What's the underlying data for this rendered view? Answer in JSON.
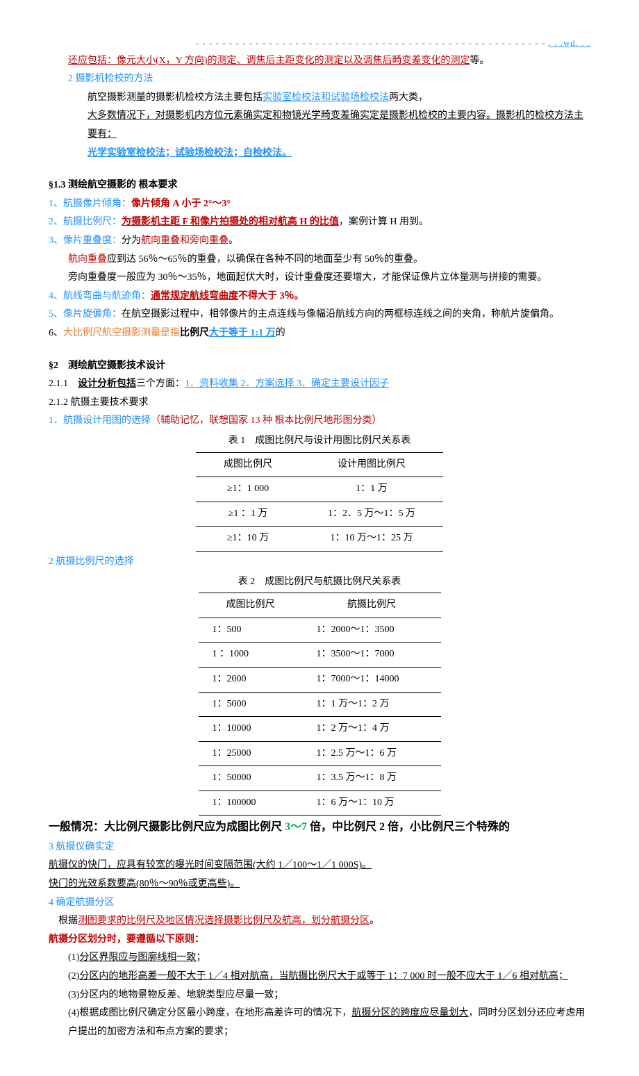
{
  "header": {
    "dashes": "- - - - - - - - - - - - - - - - - - - - - - - - - - - - - - - - - - - - - - - - - - - - - - - - - - - - - ",
    "wd": ". . .wd. . ."
  },
  "p1": {
    "prefix": "还应包括：",
    "rest": "像元大小(X，Y 方向)的测定、调焦后主距变化的测定以及调焦后畸变差变化的测定"
  },
  "p1_suffix": "等。",
  "p2": "2 摄影机检校的方法",
  "p3_a": "航空摄影测量的摄影机检校方法主要包括",
  "p3_b": "实验室检校法和试验场检校法",
  "p3_c": "两大类，",
  "p4_a": "大多数情况下，对摄影机内方位元素确实定和物镜光学畸变差确实定是摄影机检校的主要内容。摄影机的检校方法主要有：",
  "p4_b": "光学实验室检校法；试验场检校法；自检校法。",
  "s13": "§1.3 测绘航空摄影的 根本要求",
  "i1_a": "1、",
  "i1_b": "航摄像片倾角：",
  "i1_c": "像片倾角 A 小于 2°～3°",
  "i2_a": "2、",
  "i2_b": "航摄比例尺：",
  "i2_c": "为摄影机",
  "i2_d": "主距 F 和像片拍摄处的相对航高 H 的比值",
  "i2_e": "，案例计算 H 用到。",
  "i3_a": "3、",
  "i3_b": "像片重叠度：",
  "i3_c": "分为",
  "i3_d": "航向重叠和旁向重叠",
  "i3_e": "。",
  "i3_line2_a": "航向重叠",
  "i3_line2_b": "应到达 56％～65％的重叠，以确保在各种不同的地面至少有 50％的重叠。",
  "i3_line3": "旁向重叠度一般应为 30％～35％，地面起伏大时，设计重叠度还要增大，才能保证像片立体量测与拼接的需要。",
  "i4_a": "4、",
  "i4_b": "航线弯曲与航迹角：",
  "i4_c": "通常规定航线弯曲度",
  "i4_d": "不得大于 3％。",
  "i5_a": "5、",
  "i5_b": "像片旋偏角：",
  "i5_c": "在航空摄影过程中，相邻像片的主点连线与像幅沿航线方向的两框标连线之间的夹角，称航片旋偏角。",
  "i6_a": "6、",
  "i6_b": "大比例尺航空摄影测量是指",
  "i6_c": "比例尺",
  "i6_d": "大于等于 1:1 万",
  "i6_e": "的",
  "s2": "§2　测绘航空摄影技术设计",
  "s211_a": "2.1.1　",
  "s211_b": "设计分析包括",
  "s211_c": "三个方面：",
  "s211_d": "1．资料收集 2．方案选择 3．确定主要设计因子",
  "s212": "2.1.2 航摄主要技术要求",
  "s1_a": "1．航摄设计用图的选择",
  "s1_b": "（辅助记忆，联想国家 13 种 根本比例尺地形图分类）",
  "table1": {
    "caption": "表 1　成图比例尺与设计用图比例尺关系表",
    "headers": [
      "成图比例尺",
      "设计用图比例尺"
    ],
    "rows": [
      [
        "≥1：1  000",
        "1：1 万"
      ],
      [
        "≥1 ：1 万",
        "1：2．5 万～1：5 万"
      ],
      [
        "≥1：10 万",
        "1：10 万～1：25 万"
      ]
    ]
  },
  "p5": "2 航摄比例尺的选择",
  "table2": {
    "caption": "表 2　成图比例尺与航摄比例尺关系表",
    "headers": [
      "成图比例尺",
      "航摄比例尺"
    ],
    "rows": [
      [
        "1：500",
        "1：2000～1：3500"
      ],
      [
        "1 ：1000",
        "1：3500～1：7000"
      ],
      [
        "1：2000",
        "1：7000～1：14000"
      ],
      [
        "1：5000",
        "1：1 万～1：2 万"
      ],
      [
        "1：10000",
        "1：2 万～1：4 万"
      ],
      [
        "1：25000",
        "1：2.5 万～1：6 万"
      ],
      [
        "1：50000",
        "1：3.5 万～1：8 万"
      ],
      [
        "1：100000",
        "1：6 万～1：10 万"
      ]
    ]
  },
  "summary_a": "一般情况：大比例尺摄影比例尺应为成图比例尺 ",
  "summary_b": "3～7",
  "summary_c": " 倍，中比例尺 2 倍，小比例尺三个特殊的",
  "p6": "3 航摄仪确实定",
  "p7": "航摄仪的快门，应具有较宽的曝光时间变隔范围(大约 1／100～1／1 000S)。",
  "p8": "快门的光效系数要高(80％～90％或更高些)。",
  "p9": "4 确定航摄分区",
  "p10_a": "根据",
  "p10_b": "测图要求的比例尺及地区情况选择摄影比例尺及航高，划分航摄分区",
  "p10_c": "。",
  "p11": "航摄分区划分时，要遵循以下原则：",
  "r1_a": "(1)",
  "r1_b": "分区界限应与图廓线相一致",
  "r1_c": "；",
  "r2_a": "(2)",
  "r2_b": "分区内的地形高差一般不大于 1／4 相对航高，当航摄比例尺大于或等于 1：7  000 时一般不应大于 1／6 相对航高；",
  "r3": "(3)分区内的地物景物反差、地貌类型应尽量一致；",
  "r4_a": "(4)根据成图比例尺确定分区最小跨度，在地形高差许可的情况下，",
  "r4_b": "航摄分区的跨度应尽量划大",
  "r4_c": "，同时分区划分还应考虑用户提出的加密方法和布点方案的要求；"
}
